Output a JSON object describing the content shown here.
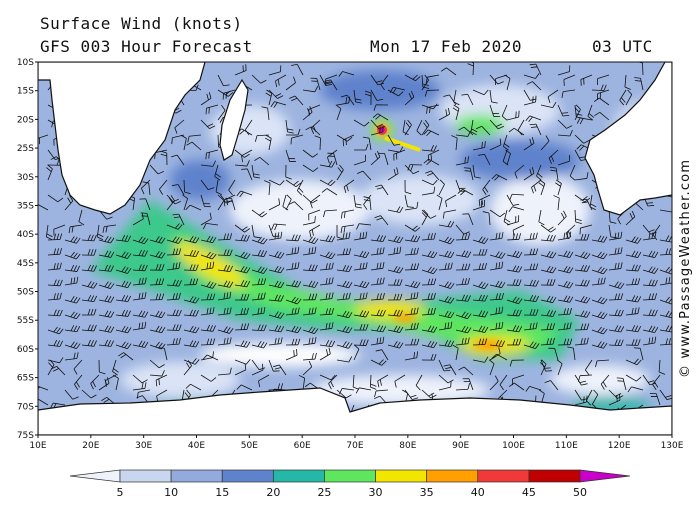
{
  "header": {
    "title": "Surface Wind (knots)",
    "forecast": "GFS 003 Hour Forecast",
    "date": "Mon 17 Feb 2020",
    "time": "03 UTC"
  },
  "credit": "© www.PassageWeather.com",
  "map": {
    "lat_labels": [
      "10S",
      "15S",
      "20S",
      "25S",
      "30S",
      "35S",
      "40S",
      "45S",
      "50S",
      "55S",
      "60S",
      "65S",
      "70S",
      "75S"
    ],
    "lon_labels": [
      "10E",
      "20E",
      "30E",
      "40E",
      "50E",
      "60E",
      "70E",
      "80E",
      "90E",
      "100E",
      "110E",
      "120E",
      "130E"
    ]
  },
  "legend": {
    "ticks": [
      "5",
      "10",
      "15",
      "20",
      "25",
      "30",
      "35",
      "40",
      "45",
      "50"
    ],
    "colors": [
      "#eef2fb",
      "#c9d6ef",
      "#93abdc",
      "#5f82cc",
      "#25b7a8",
      "#5fe65f",
      "#f2e600",
      "#ff9f00",
      "#f03a3a",
      "#c00000",
      "#c800c8"
    ]
  }
}
